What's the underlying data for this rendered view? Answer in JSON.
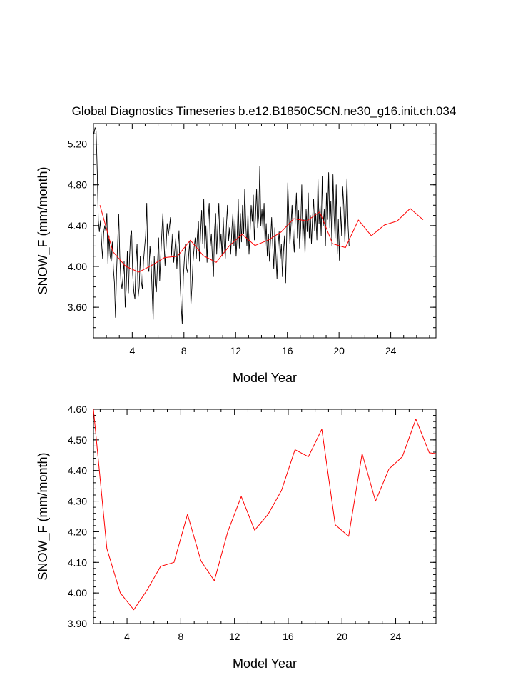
{
  "title": "Global Diagnostics Timeseries b.e12.B1850C5CN.ne30_g16.init.ch.034",
  "colors": {
    "monthly": "#000000",
    "annual": "#ff0000"
  },
  "chart_data": [
    {
      "type": "line",
      "name": "monthly-and-annual",
      "xlabel": "Model Year",
      "ylabel": "SNOW_F (mm/month)",
      "xlim": [
        1.0,
        27.5
      ],
      "ylim": [
        3.3,
        5.4
      ],
      "xticks": [
        4,
        8,
        12,
        16,
        20,
        24
      ],
      "xtick_labels": [
        "4",
        "8",
        "12",
        "16",
        "20",
        "24"
      ],
      "yticks": [
        3.6,
        4.0,
        4.4,
        4.8,
        5.2
      ],
      "ytick_labels": [
        "3.60",
        "4.00",
        "4.40",
        "4.80",
        "5.20"
      ],
      "series": [
        {
          "name": "monthly",
          "color": "#000000",
          "x_start": 1.04,
          "x_step": 0.0833,
          "values": [
            5.3,
            5.36,
            5.33,
            4.94,
            4.45,
            4.34,
            4.45,
            4.24,
            4.08,
            4.33,
            4.4,
            4.35,
            4.52,
            4.03,
            4.3,
            4.1,
            4.05,
            4.24,
            3.98,
            3.84,
            3.5,
            3.95,
            4.22,
            4.51,
            4.1,
            3.86,
            3.78,
            3.91,
            4.05,
            3.6,
            3.8,
            4.15,
            3.74,
            4.08,
            4.3,
            4.35,
            3.92,
            3.75,
            3.68,
            4.04,
            4.22,
            3.7,
            3.8,
            4.1,
            3.85,
            3.78,
            4.05,
            4.18,
            4.3,
            4.62,
            4.0,
            3.95,
            4.2,
            4.05,
            3.76,
            3.48,
            4.1,
            3.82,
            3.75,
            4.02,
            4.28,
            3.86,
            4.1,
            4.32,
            4.52,
            4.25,
            4.01,
            4.2,
            4.42,
            4.3,
            4.38,
            4.48,
            4.11,
            4.32,
            4.04,
            4.15,
            4.28,
            3.98,
            4.2,
            4.35,
            3.86,
            3.62,
            3.44,
            3.9,
            4.08,
            4.22,
            3.98,
            3.94,
            4.12,
            4.25,
            3.62,
            3.8,
            4.04,
            4.18,
            4.28,
            4.08,
            4.3,
            4.44,
            4.05,
            4.32,
            4.55,
            4.22,
            4.66,
            4.18,
            4.4,
            4.04,
            4.46,
            4.62,
            4.2,
            4.32,
            4.08,
            3.9,
            4.35,
            4.52,
            4.12,
            4.4,
            4.62,
            4.18,
            4.32,
            4.1,
            4.48,
            4.22,
            4.08,
            4.4,
            4.6,
            4.25,
            4.38,
            4.12,
            4.35,
            4.52,
            4.2,
            4.46,
            4.1,
            4.3,
            4.66,
            4.18,
            4.52,
            4.24,
            4.6,
            4.32,
            4.76,
            4.4,
            4.2,
            4.52,
            4.12,
            4.34,
            4.6,
            4.44,
            4.7,
            4.26,
            4.48,
            4.76,
            4.38,
            4.5,
            4.98,
            4.4,
            4.56,
            4.35,
            4.62,
            4.2,
            4.42,
            4.1,
            4.32,
            4.05,
            4.26,
            4.48,
            4.2,
            3.98,
            4.38,
            4.12,
            3.88,
            4.2,
            4.34,
            4.08,
            4.22,
            3.9,
            4.15,
            4.3,
            3.84,
            4.3,
            4.82,
            4.5,
            4.22,
            4.4,
            4.6,
            4.3,
            4.14,
            4.48,
            4.72,
            4.28,
            4.55,
            4.18,
            4.38,
            4.8,
            4.25,
            4.46,
            4.12,
            4.56,
            4.34,
            4.72,
            4.28,
            4.5,
            4.22,
            4.48,
            4.66,
            4.35,
            4.52,
            4.26,
            4.86,
            4.42,
            4.6,
            4.3,
            4.88,
            4.4,
            4.56,
            4.2,
            4.72,
            4.46,
            4.92,
            4.38,
            4.64,
            4.2,
            4.9,
            4.5,
            4.28,
            4.8,
            4.12,
            4.46,
            4.06,
            4.58,
            4.3,
            4.78,
            4.6,
            4.24,
            4.5,
            4.86,
            4.4,
            4.2
          ]
        },
        {
          "name": "annual",
          "color": "#ff0000",
          "x": [
            1.5,
            2.5,
            3.5,
            4.5,
            5.5,
            6.5,
            7.5,
            8.5,
            9.5,
            10.5,
            11.5,
            12.5,
            13.5,
            14.5,
            15.5,
            16.5,
            17.5,
            18.5,
            19.5,
            20.5,
            21.5,
            22.5,
            23.5,
            24.5,
            25.5,
            26.5
          ],
          "values": [
            4.6,
            4.145,
            4.0,
            3.945,
            4.01,
            4.087,
            4.1,
            4.257,
            4.105,
            4.04,
            4.2,
            4.315,
            4.205,
            4.257,
            4.335,
            4.468,
            4.445,
            4.535,
            4.223,
            4.185,
            4.455,
            4.3,
            4.405,
            4.445,
            4.568,
            4.458
          ]
        }
      ]
    },
    {
      "type": "line",
      "name": "annual",
      "xlabel": "Model Year",
      "ylabel": "SNOW_F (mm/month)",
      "xlim": [
        1.5,
        27.0
      ],
      "ylim": [
        3.9,
        4.6
      ],
      "xticks": [
        4,
        8,
        12,
        16,
        20,
        24
      ],
      "xtick_labels": [
        "4",
        "8",
        "12",
        "16",
        "20",
        "24"
      ],
      "yticks": [
        3.9,
        4.0,
        4.1,
        4.2,
        4.3,
        4.4,
        4.5,
        4.6
      ],
      "ytick_labels": [
        "3.90",
        "4.00",
        "4.10",
        "4.20",
        "4.30",
        "4.40",
        "4.50",
        "4.60"
      ],
      "series": [
        {
          "name": "annual",
          "color": "#ff0000",
          "x": [
            1.5,
            2.5,
            3.5,
            4.5,
            5.5,
            6.5,
            7.5,
            8.5,
            9.5,
            10.5,
            11.5,
            12.5,
            13.5,
            14.5,
            15.5,
            16.5,
            17.5,
            18.5,
            19.5,
            20.5,
            21.5,
            22.5,
            23.5,
            24.5,
            25.5,
            26.5,
            27.0
          ],
          "values": [
            4.6,
            4.145,
            4.0,
            3.945,
            4.01,
            4.087,
            4.1,
            4.257,
            4.105,
            4.04,
            4.2,
            4.315,
            4.205,
            4.257,
            4.335,
            4.468,
            4.445,
            4.535,
            4.223,
            4.185,
            4.455,
            4.3,
            4.405,
            4.445,
            4.568,
            4.458,
            4.455
          ]
        }
      ]
    }
  ]
}
